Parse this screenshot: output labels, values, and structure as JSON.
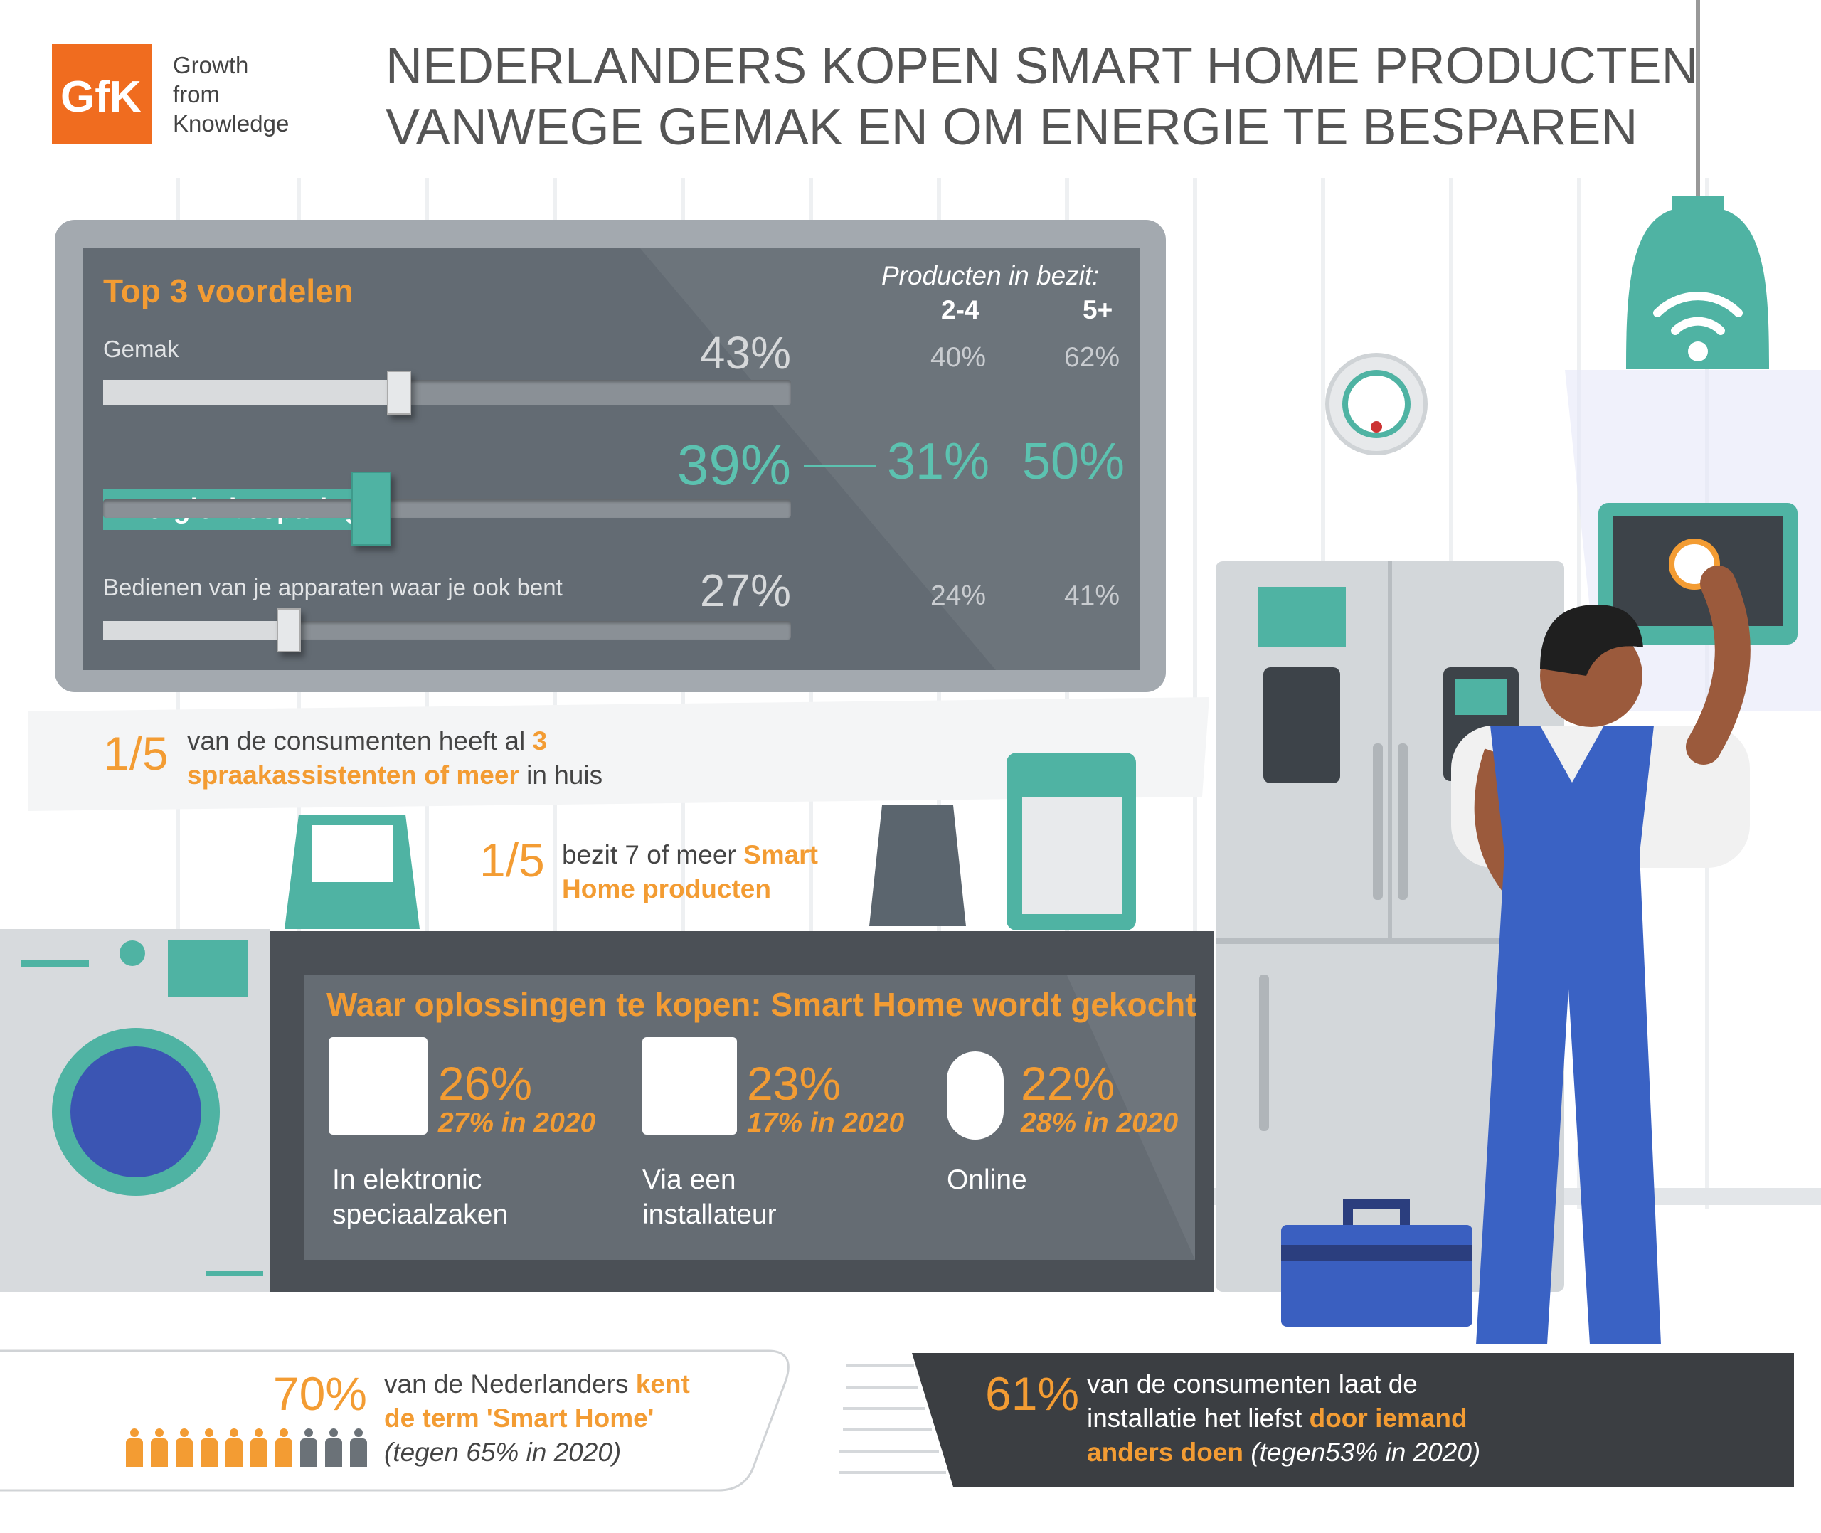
{
  "logo": {
    "brand": "GfK",
    "tagline": [
      "Growth",
      "from",
      "Knowledge"
    ]
  },
  "title": [
    "NEDERLANDERS KOPEN SMART HOME PRODUCTEN",
    "VANWEGE GEMAK EN OM ENERGIE TE BESPAREN"
  ],
  "benefits": {
    "title": "Top 3 voordelen",
    "owned_label": "Producten in bezit:",
    "columns": [
      "2-4",
      "5+"
    ],
    "items": [
      {
        "label": "Gemak",
        "value": 43,
        "value_label": "43%",
        "by_owned": [
          "40%",
          "62%"
        ]
      },
      {
        "label": "Energie  besparing",
        "value": 39,
        "value_label": "39%",
        "by_owned": [
          "31%",
          "50%"
        ]
      },
      {
        "label": "Bedienen van je apparaten waar je ook bent",
        "value": 27,
        "value_label": "27%",
        "by_owned": [
          "24%",
          "41%"
        ]
      }
    ]
  },
  "facts": [
    {
      "fraction": "1/5",
      "text": [
        "van de consumenten heeft al ",
        "3 spraakassistenten of meer",
        " in huis"
      ]
    },
    {
      "fraction": "1/5",
      "text": [
        "bezit 7 of meer ",
        "Smart Home producten"
      ]
    }
  ],
  "channels": {
    "title": "Waar oplossingen te kopen: Smart Home wordt gekocht",
    "items": [
      {
        "value": "26%",
        "previous": "27% in 2020",
        "label": [
          "In elektronic",
          "speciaalzaken"
        ]
      },
      {
        "value": "23%",
        "previous": "17% in 2020",
        "label": [
          "Via een",
          "installateur"
        ]
      },
      {
        "value": "22%",
        "previous": "28% in 2020",
        "label": [
          "Online"
        ]
      }
    ]
  },
  "awareness": {
    "value": 70,
    "value_label": "70%",
    "text": [
      "van de Nederlanders ",
      "kent de term 'Smart Home'",
      "(tegen 65% in 2020)"
    ]
  },
  "installation": {
    "value": "61%",
    "text": [
      "van de consumenten laat de installatie het liefst ",
      "door iemand anders doen",
      " (tegen53% in 2020)"
    ]
  }
}
